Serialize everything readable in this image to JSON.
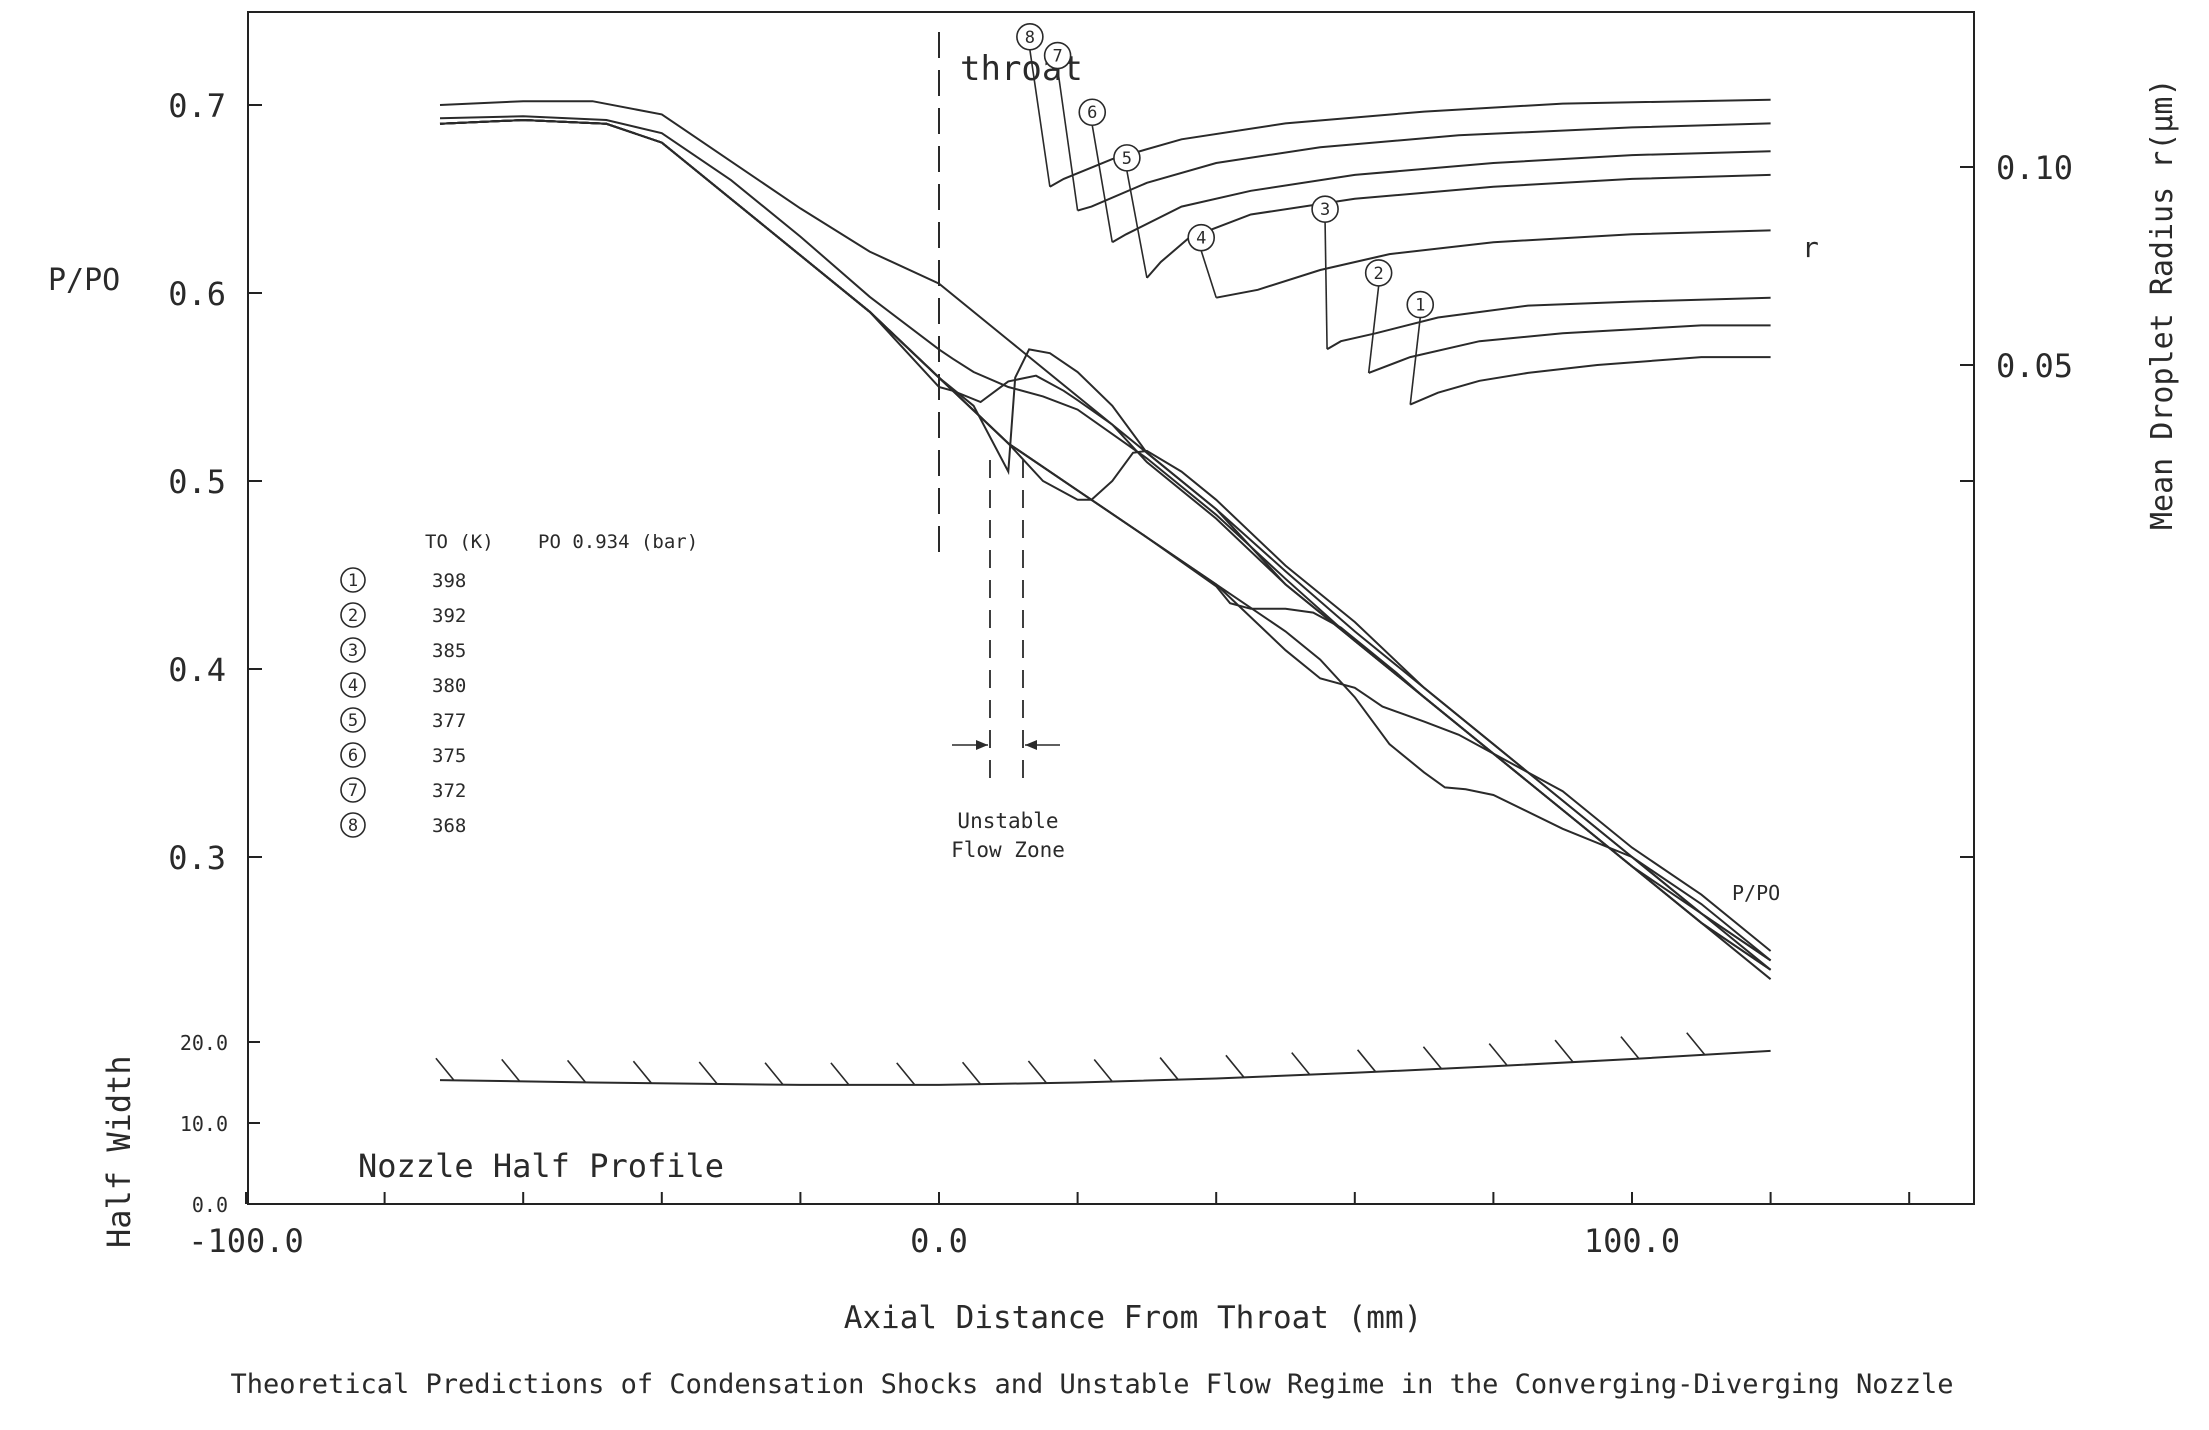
{
  "chart_data": {
    "type": "line",
    "caption": "Theoretical Predictions of Condensation Shocks and Unstable Flow Regime in the Converging-Diverging Nozzle",
    "xlabel": "Axial Distance From Throat (mm)",
    "x_ticks": [
      "-100.0",
      "0.0",
      "100.0"
    ],
    "xlim": [
      -100,
      150
    ],
    "ylabel_left": "P/PO",
    "y_ticks_left": [
      "0.3",
      "0.4",
      "0.5",
      "0.6",
      "0.7"
    ],
    "ylim_left": [
      0.25,
      0.75
    ],
    "ylabel_right": "Mean Droplet Radius r(µm)",
    "y_ticks_right": [
      "0.05",
      "0.10"
    ],
    "ylabel_lower": "Half Width",
    "y_ticks_lower": [
      "0.0",
      "10.0",
      "20.0"
    ],
    "ylim_lower": [
      0,
      20
    ],
    "annotations": {
      "throat": "throat",
      "unstable": [
        "Unstable",
        "Flow Zone"
      ],
      "r": "r",
      "ppo": "P/PO",
      "profile": "Nozzle Half Profile"
    },
    "legend_header": {
      "t0": "TO (K)",
      "p0": "PO 0.934 (bar)"
    },
    "legend": [
      {
        "id": "1",
        "T0": "398"
      },
      {
        "id": "2",
        "T0": "392"
      },
      {
        "id": "3",
        "T0": "385"
      },
      {
        "id": "4",
        "T0": "380"
      },
      {
        "id": "5",
        "T0": "377"
      },
      {
        "id": "6",
        "T0": "375"
      },
      {
        "id": "7",
        "T0": "372"
      },
      {
        "id": "8",
        "T0": "368"
      }
    ],
    "pressure_series": [
      {
        "label": "1",
        "x": [
          -72,
          -60,
          -48,
          -40,
          -30,
          -20,
          -10,
          0,
          10,
          20,
          30,
          40,
          50,
          55,
          60,
          65,
          70,
          73,
          76,
          80,
          90,
          100,
          110,
          120
        ],
        "y": [
          0.69,
          0.692,
          0.69,
          0.68,
          0.65,
          0.62,
          0.59,
          0.555,
          0.52,
          0.495,
          0.47,
          0.445,
          0.42,
          0.405,
          0.385,
          0.36,
          0.345,
          0.337,
          0.336,
          0.333,
          0.315,
          0.3,
          0.275,
          0.245
        ]
      },
      {
        "label": "2",
        "x": [
          -72,
          -60,
          -48,
          -40,
          -30,
          -20,
          -10,
          0,
          10,
          20,
          30,
          40,
          50,
          55,
          60,
          62,
          64,
          67,
          70,
          75,
          80,
          90,
          100,
          110,
          120
        ],
        "y": [
          0.69,
          0.692,
          0.69,
          0.68,
          0.65,
          0.62,
          0.59,
          0.555,
          0.52,
          0.495,
          0.47,
          0.445,
          0.41,
          0.395,
          0.39,
          0.385,
          0.38,
          0.376,
          0.372,
          0.365,
          0.355,
          0.335,
          0.305,
          0.28,
          0.25
        ]
      },
      {
        "label": "3",
        "x": [
          -72,
          -60,
          -48,
          -40,
          -30,
          -20,
          -10,
          0,
          10,
          20,
          30,
          40,
          42,
          45,
          48,
          50,
          54,
          58,
          62,
          66,
          70,
          80,
          90,
          100,
          110,
          120
        ],
        "y": [
          0.69,
          0.692,
          0.69,
          0.68,
          0.65,
          0.62,
          0.59,
          0.555,
          0.52,
          0.495,
          0.47,
          0.444,
          0.435,
          0.432,
          0.432,
          0.432,
          0.43,
          0.422,
          0.41,
          0.398,
          0.385,
          0.355,
          0.325,
          0.295,
          0.27,
          0.245
        ]
      },
      {
        "label": "4",
        "x": [
          -72,
          -60,
          -48,
          -40,
          -30,
          -20,
          -10,
          0,
          10,
          15,
          20,
          22,
          25,
          28,
          30,
          35,
          40,
          50,
          60,
          70,
          80,
          90,
          100,
          110,
          120
        ],
        "y": [
          0.69,
          0.692,
          0.69,
          0.68,
          0.65,
          0.62,
          0.59,
          0.555,
          0.52,
          0.5,
          0.49,
          0.49,
          0.5,
          0.515,
          0.516,
          0.505,
          0.49,
          0.455,
          0.425,
          0.39,
          0.36,
          0.33,
          0.3,
          0.27,
          0.24
        ]
      },
      {
        "label": "5",
        "x": [
          -72,
          -60,
          -48,
          -40,
          -30,
          -20,
          -10,
          0,
          5,
          10,
          11,
          13,
          16,
          20,
          25,
          30,
          40,
          50,
          60,
          70,
          80,
          90,
          100,
          110,
          120
        ],
        "y": [
          0.69,
          0.692,
          0.69,
          0.68,
          0.65,
          0.62,
          0.59,
          0.555,
          0.54,
          0.505,
          0.555,
          0.57,
          0.568,
          0.558,
          0.54,
          0.515,
          0.485,
          0.445,
          0.415,
          0.385,
          0.355,
          0.325,
          0.295,
          0.265,
          0.235
        ]
      },
      {
        "label": "6",
        "x": [
          -72,
          -60,
          -48,
          -40,
          -30,
          -20,
          -10,
          0,
          2,
          6,
          10,
          14,
          18,
          20,
          25,
          30,
          40,
          50,
          60,
          70,
          80,
          90,
          100,
          110,
          120
        ],
        "y": [
          0.69,
          0.692,
          0.69,
          0.68,
          0.65,
          0.62,
          0.59,
          0.55,
          0.548,
          0.542,
          0.553,
          0.556,
          0.548,
          0.543,
          0.53,
          0.51,
          0.48,
          0.445,
          0.415,
          0.385,
          0.355,
          0.325,
          0.295,
          0.265,
          0.24
        ]
      },
      {
        "label": "7",
        "x": [
          -72,
          -60,
          -48,
          -40,
          -30,
          -20,
          -10,
          0,
          2,
          5,
          10,
          15,
          20,
          30,
          40,
          50,
          60,
          70,
          80,
          90,
          100,
          110,
          120
        ],
        "y": [
          0.693,
          0.694,
          0.692,
          0.685,
          0.66,
          0.63,
          0.598,
          0.57,
          0.565,
          0.558,
          0.55,
          0.545,
          0.538,
          0.512,
          0.482,
          0.448,
          0.415,
          0.385,
          0.355,
          0.325,
          0.295,
          0.265,
          0.24
        ]
      },
      {
        "label": "8",
        "x": [
          -72,
          -60,
          -50,
          -40,
          -30,
          -20,
          -10,
          0,
          10,
          20,
          30,
          40,
          50,
          60,
          70,
          80,
          90,
          100,
          110,
          120
        ],
        "y": [
          0.7,
          0.702,
          0.702,
          0.695,
          0.67,
          0.645,
          0.622,
          0.605,
          0.575,
          0.545,
          0.515,
          0.485,
          0.452,
          0.42,
          0.39,
          0.36,
          0.33,
          0.3,
          0.27,
          0.245
        ]
      }
    ],
    "radius_series": [
      {
        "label": "1",
        "x": [
          68,
          72,
          78,
          85,
          95,
          110,
          120
        ],
        "y": [
          0.04,
          0.043,
          0.046,
          0.048,
          0.05,
          0.052,
          0.052
        ]
      },
      {
        "label": "2",
        "x": [
          62,
          68,
          78,
          90,
          100,
          110,
          120
        ],
        "y": [
          0.048,
          0.052,
          0.056,
          0.058,
          0.059,
          0.06,
          0.06
        ]
      },
      {
        "label": "3",
        "x": [
          56,
          58,
          63,
          72,
          85,
          100,
          120
        ],
        "y": [
          0.054,
          0.056,
          0.058,
          0.062,
          0.065,
          0.066,
          0.067
        ]
      },
      {
        "label": "4",
        "x": [
          40,
          46,
          55,
          65,
          80,
          100,
          120
        ],
        "y": [
          0.067,
          0.069,
          0.074,
          0.078,
          0.081,
          0.083,
          0.084
        ]
      },
      {
        "label": "5",
        "x": [
          30,
          32,
          36,
          45,
          60,
          80,
          100,
          120
        ],
        "y": [
          0.072,
          0.076,
          0.082,
          0.088,
          0.092,
          0.095,
          0.097,
          0.098
        ]
      },
      {
        "label": "6",
        "x": [
          25,
          27,
          35,
          45,
          60,
          80,
          100,
          120
        ],
        "y": [
          0.081,
          0.083,
          0.09,
          0.094,
          0.098,
          0.101,
          0.103,
          0.104
        ]
      },
      {
        "label": "7",
        "x": [
          20,
          22,
          30,
          40,
          55,
          75,
          100,
          120
        ],
        "y": [
          0.089,
          0.09,
          0.096,
          0.101,
          0.105,
          0.108,
          0.11,
          0.111
        ]
      },
      {
        "label": "8",
        "x": [
          16,
          18,
          25,
          35,
          50,
          70,
          90,
          120
        ],
        "y": [
          0.095,
          0.097,
          0.102,
          0.107,
          0.111,
          0.114,
          0.116,
          0.117
        ]
      }
    ],
    "nozzle_profile": {
      "x": [
        -72,
        -50,
        -20,
        0,
        20,
        40,
        60,
        80,
        100,
        120
      ],
      "y": [
        15.3,
        15.0,
        14.7,
        14.7,
        15.0,
        15.5,
        16.2,
        17.0,
        17.9,
        18.9
      ]
    }
  }
}
